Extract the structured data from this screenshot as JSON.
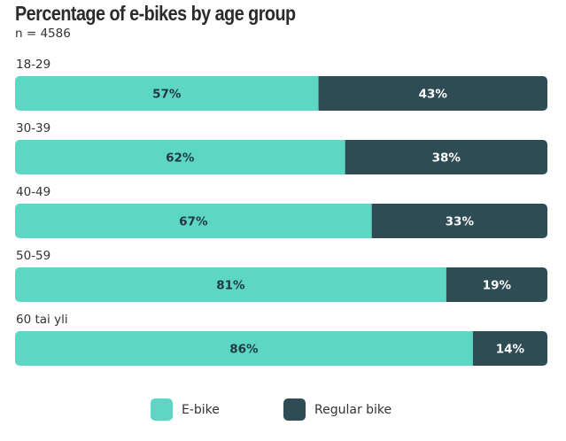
{
  "title": "Percentage of e-bikes by age group",
  "subtitle": "n = 4586",
  "colors": {
    "ebike": "#5dd6c3",
    "regular": "#2f4b53"
  },
  "chart_data": {
    "type": "bar",
    "orientation": "horizontal",
    "stacked": true,
    "categories": [
      "18-29",
      "30-39",
      "40-49",
      "50-59",
      "60 tai yli"
    ],
    "series": [
      {
        "name": "E-bike",
        "values": [
          57,
          62,
          67,
          81,
          86
        ],
        "labels": [
          "57%",
          "62%",
          "67%",
          "81%",
          "86%"
        ],
        "color": "#5dd6c3"
      },
      {
        "name": "Regular bike",
        "values": [
          43,
          38,
          33,
          19,
          14
        ],
        "labels": [
          "43%",
          "38%",
          "33%",
          "19%",
          "14%"
        ],
        "color": "#2f4b53"
      }
    ],
    "xlim": [
      0,
      100
    ],
    "grid": false,
    "legend": "bottom"
  }
}
